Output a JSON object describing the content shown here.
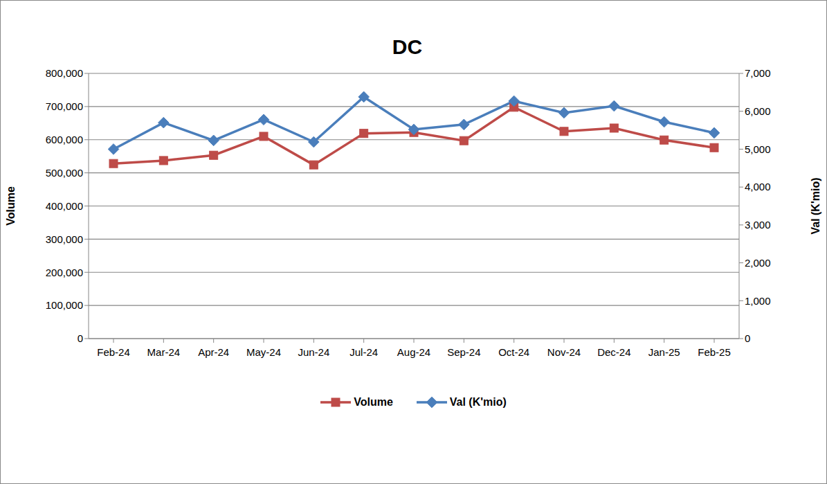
{
  "chart_data": {
    "type": "line",
    "title": "DC",
    "categories": [
      "Feb-24",
      "Mar-24",
      "Apr-24",
      "May-24",
      "Jun-24",
      "Jul-24",
      "Aug-24",
      "Sep-24",
      "Oct-24",
      "Nov-24",
      "Dec-24",
      "Jan-25",
      "Feb-25"
    ],
    "series": [
      {
        "name": "Volume",
        "color": "#be4b48",
        "marker": "square",
        "values": [
          528000,
          537000,
          553000,
          610000,
          524000,
          619000,
          622000,
          597000,
          698000,
          625000,
          635000,
          599000,
          576000
        ]
      },
      {
        "name": "Val (K'mio)",
        "color": "#4a7ebb",
        "marker": "diamond",
        "axis": "y2",
        "values": [
          5000,
          5700,
          5230,
          5780,
          5190,
          6380,
          5520,
          5650,
          6270,
          5960,
          6140,
          5720,
          5430
        ]
      }
    ],
    "y_label": "Volume",
    "y2_label": "Val (K'mio)",
    "ylim": [
      0,
      800000
    ],
    "yticks": [
      0,
      {
        "value": 100000,
        "label": "100,000"
      },
      {
        "value": 200000,
        "label": "200,000"
      },
      {
        "value": 300000,
        "label": "300,000"
      },
      {
        "value": 400000,
        "label": "400,000"
      },
      {
        "value": 500000,
        "label": "500,000"
      },
      {
        "value": 600000,
        "label": "600,000"
      },
      {
        "value": 700000,
        "label": "700,000"
      },
      {
        "value": 800000,
        "label": "800,000"
      }
    ],
    "y2lim": [
      0,
      7000
    ],
    "y2ticks": [
      0,
      {
        "value": 1000,
        "label": "1,000"
      },
      {
        "value": 2000,
        "label": "2,000"
      },
      {
        "value": 3000,
        "label": "3,000"
      },
      {
        "value": 4000,
        "label": "4,000"
      },
      {
        "value": 5000,
        "label": "5,000"
      },
      {
        "value": 6000,
        "label": "6,000"
      },
      {
        "value": 7000,
        "label": "7,000"
      }
    ],
    "grid": true,
    "legend": "bottom"
  }
}
